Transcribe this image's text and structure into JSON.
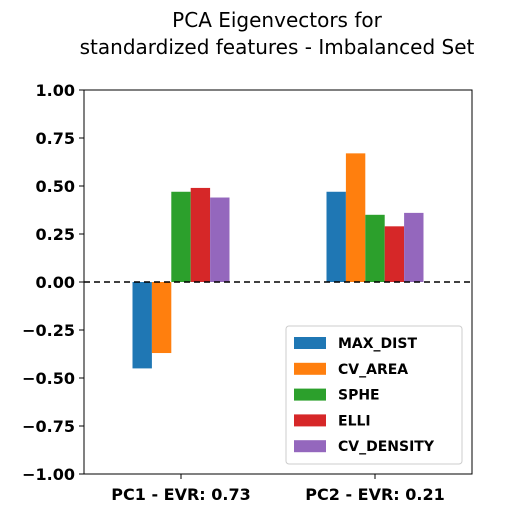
{
  "chart_data": {
    "type": "bar",
    "title_lines": [
      "PCA Eigenvectors for",
      "standardized features - Imbalanced Set"
    ],
    "categories": [
      "PC1 - EVR: 0.73",
      "PC2 - EVR: 0.21"
    ],
    "series": [
      {
        "name": "MAX_DIST",
        "color": "#1f77b4",
        "values": [
          -0.45,
          0.47
        ]
      },
      {
        "name": "CV_AREA",
        "color": "#ff7f0e",
        "values": [
          -0.37,
          0.67
        ]
      },
      {
        "name": "SPHE",
        "color": "#2ca02c",
        "values": [
          0.47,
          0.35
        ]
      },
      {
        "name": "ELLI",
        "color": "#d62728",
        "values": [
          0.49,
          0.29
        ]
      },
      {
        "name": "CV_DENSITY",
        "color": "#9467bd",
        "values": [
          0.44,
          0.36
        ]
      }
    ],
    "ylim": [
      -1.0,
      1.0
    ],
    "yticks": [
      "−1.00",
      "−0.75",
      "−0.50",
      "−0.25",
      "0.00",
      "0.25",
      "0.50",
      "0.75",
      "1.00"
    ],
    "ytick_values": [
      -1.0,
      -0.75,
      -0.5,
      -0.25,
      0.0,
      0.25,
      0.5,
      0.75,
      1.0
    ],
    "zero_line": "dashed",
    "grid": false,
    "legend_position": "bottom-right"
  }
}
